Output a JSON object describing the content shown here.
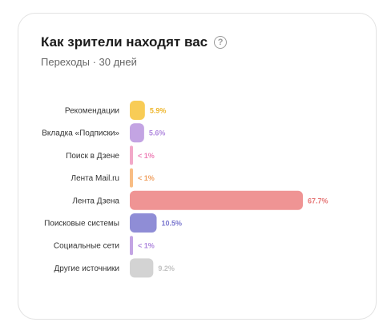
{
  "header": {
    "title": "Как зрители находят вас",
    "help_icon": "?",
    "subtitle": "Переходы · 30 дней"
  },
  "chart_data": {
    "type": "bar",
    "orientation": "horizontal",
    "title": "Как зрители находят вас",
    "subtitle": "Переходы · 30 дней",
    "xlim": [
      0,
      67.7
    ],
    "categories": [
      "Рекомендации",
      "Вкладка «Подписки»",
      "Поиск в Дзене",
      "Лента Mail.ru",
      "Лента Дзена",
      "Поисковые системы",
      "Социальные сети",
      "Другие источники"
    ],
    "values": [
      5.9,
      5.6,
      0.5,
      0.5,
      67.7,
      10.5,
      0.5,
      9.2
    ],
    "value_labels": [
      "5.9%",
      "5.6%",
      "< 1%",
      "< 1%",
      "67.7%",
      "10.5%",
      "< 1%",
      "9.2%"
    ],
    "colors": [
      "#f8cc56",
      "#c3a4e3",
      "#f2a8c8",
      "#f8bd84",
      "#ef9494",
      "#8f8dd6",
      "#c3a4e3",
      "#d3d3d3"
    ],
    "label_colors": [
      "#eeb62c",
      "#b088de",
      "#ee82b8",
      "#f0a060",
      "#e67878",
      "#7a77cf",
      "#b088de",
      "#c2c2c2"
    ]
  }
}
